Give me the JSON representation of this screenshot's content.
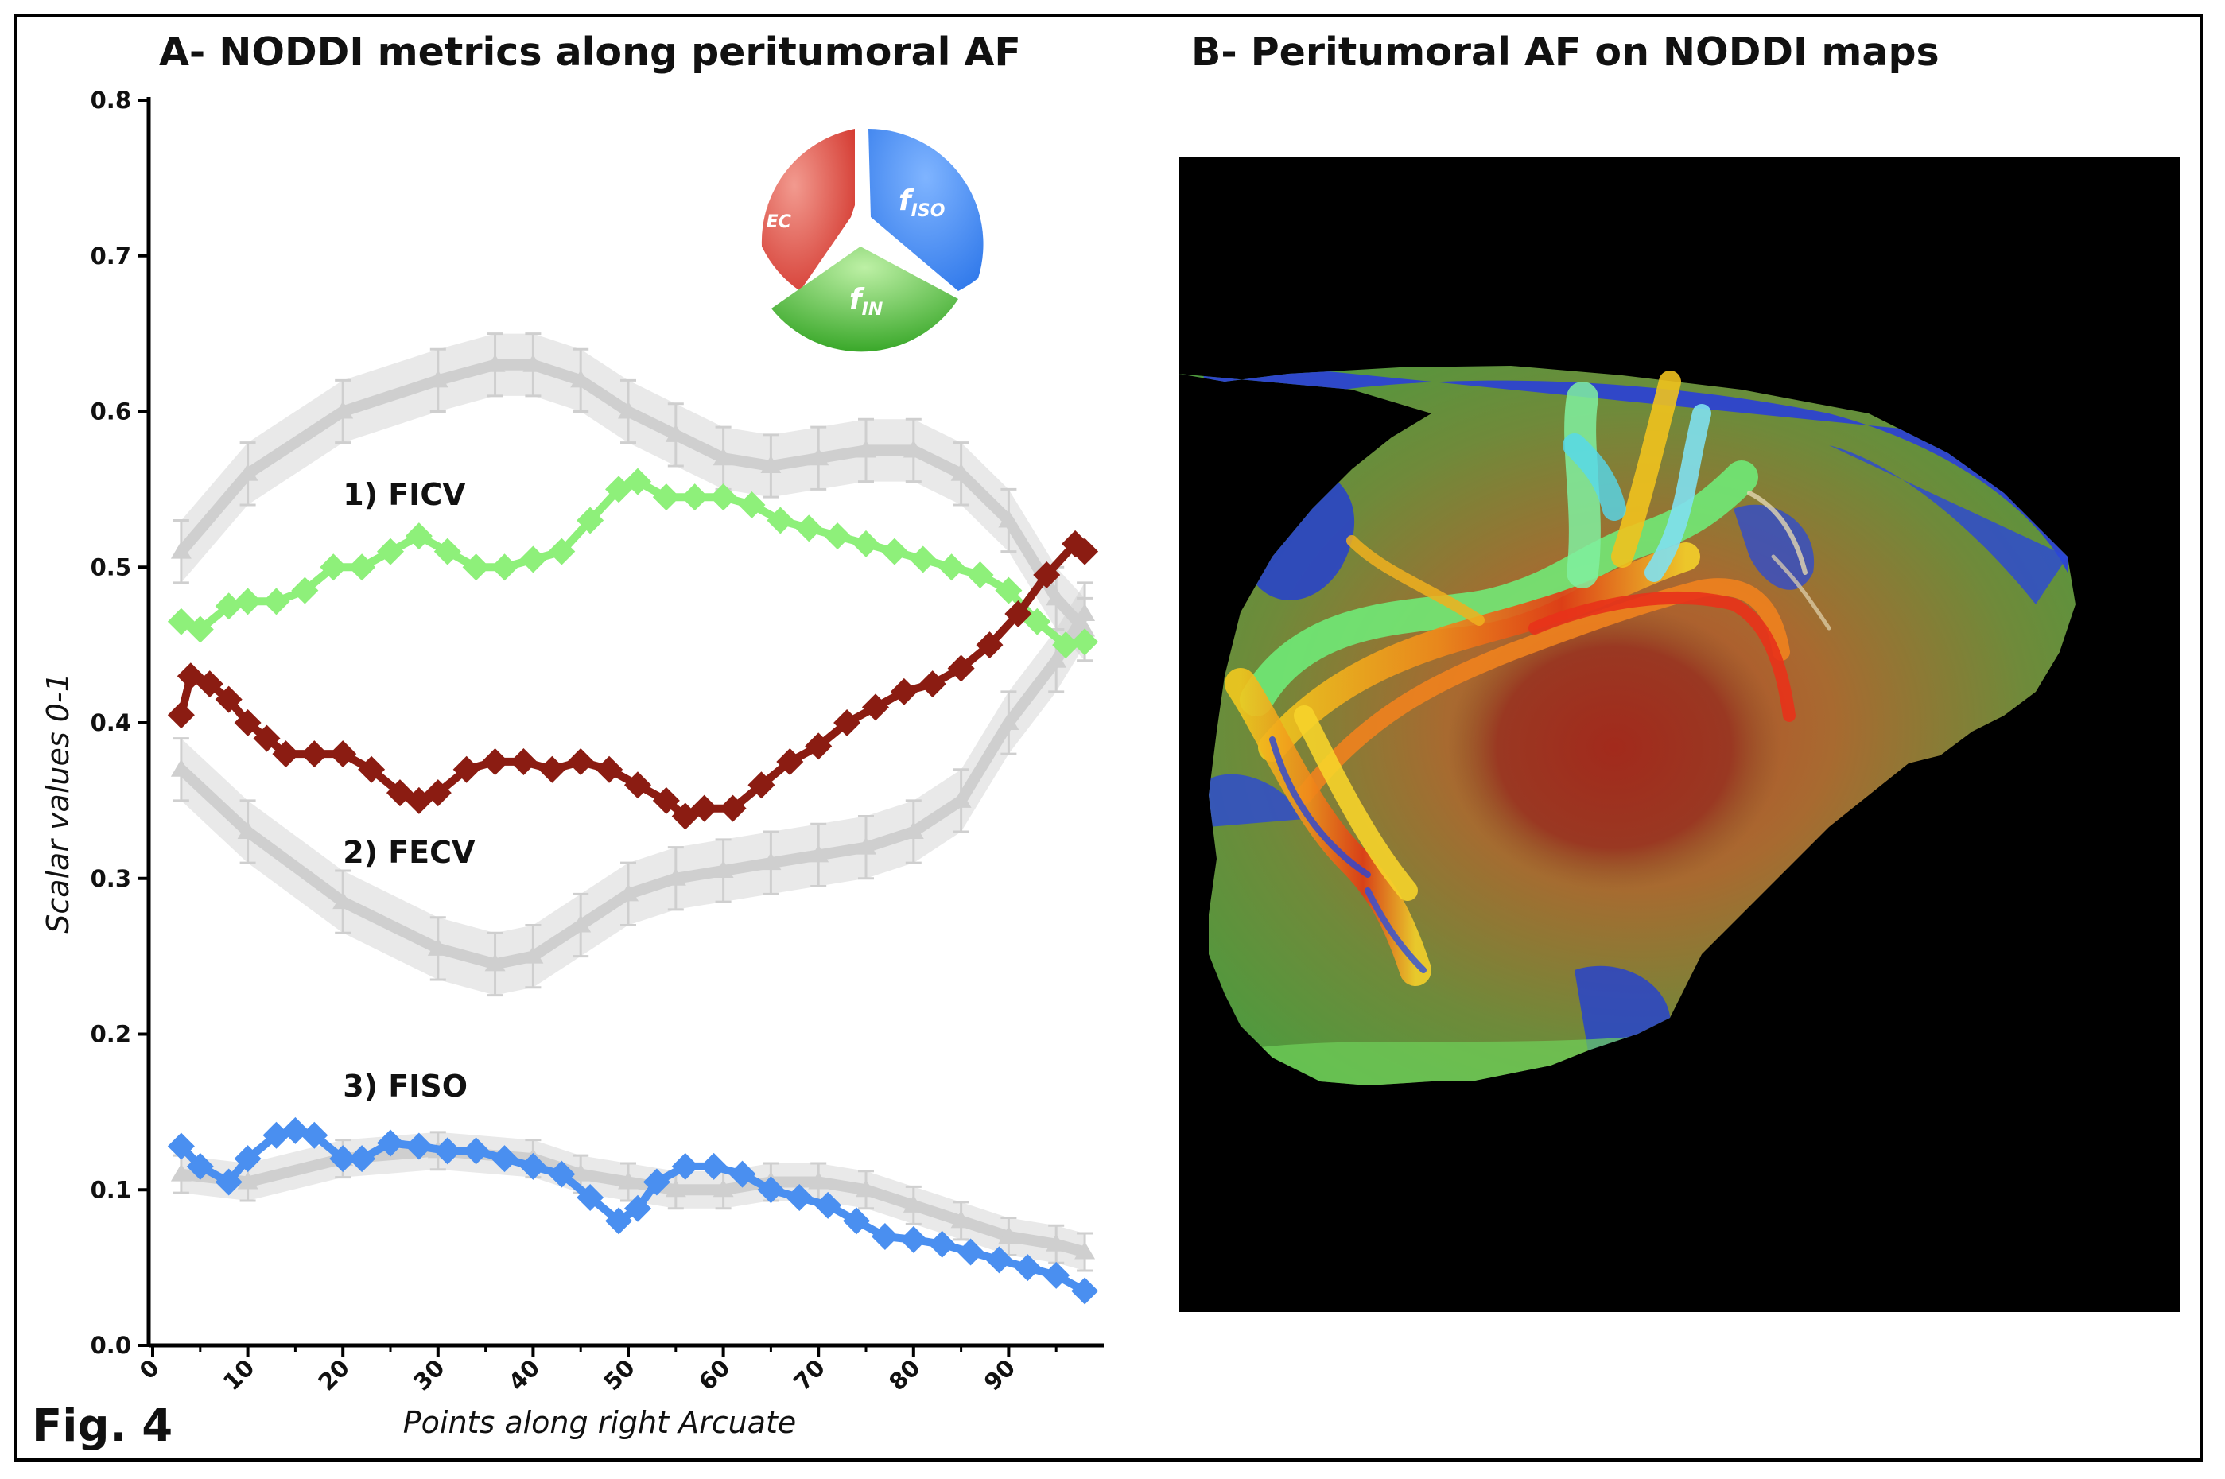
{
  "figure": {
    "label": "Fig. 4",
    "panel_a_title": "A- NODDI metrics along peritumoral AF",
    "panel_b_title": "B- Peritumoral AF on NODDI maps"
  },
  "legend_pie": {
    "segments": [
      {
        "main": "f",
        "sub": "EC",
        "color": "#e0443c"
      },
      {
        "main": "f",
        "sub": "ISO",
        "color": "#3f86ee"
      },
      {
        "main": "f",
        "sub": "IN",
        "color": "#4fc03d"
      }
    ]
  },
  "chart_data": {
    "type": "line",
    "title": "A- NODDI metrics along peritumoral AF",
    "xlabel": "Points along right Arcuate",
    "ylabel": "Scalar values 0-1",
    "xlim": [
      0,
      100
    ],
    "ylim": [
      0,
      0.8
    ],
    "xticks": [
      0,
      10,
      20,
      30,
      40,
      50,
      60,
      70,
      80,
      90
    ],
    "yticks": [
      0.0,
      0.1,
      0.2,
      0.3,
      0.4,
      0.5,
      0.6,
      0.7,
      0.8
    ],
    "xtick_labels": [
      "0",
      "10",
      "20",
      "30",
      "40",
      "50",
      "60",
      "70",
      "80",
      "90"
    ],
    "ytick_labels": [
      "0.0",
      "0.1",
      "0.2",
      "0.3",
      "0.4",
      "0.5",
      "0.6",
      "0.7",
      "0.8"
    ],
    "series_labels": [
      {
        "text": "1) FICV",
        "x": 20,
        "y": 0.54
      },
      {
        "text": "2) FECV",
        "x": 20,
        "y": 0.31
      },
      {
        "text": "3) FISO",
        "x": 20,
        "y": 0.16
      }
    ],
    "series": [
      {
        "name": "FICV reference (mean ± error)",
        "color": "#cfcfcf",
        "role": "reference",
        "x": [
          3,
          10,
          20,
          30,
          36,
          40,
          45,
          50,
          55,
          60,
          65,
          70,
          75,
          80,
          85,
          90,
          95,
          98
        ],
        "y": [
          0.51,
          0.56,
          0.6,
          0.62,
          0.63,
          0.63,
          0.62,
          0.6,
          0.585,
          0.57,
          0.565,
          0.57,
          0.575,
          0.575,
          0.56,
          0.53,
          0.48,
          0.46
        ],
        "err": 0.02
      },
      {
        "name": "FECV reference (mean ± error)",
        "color": "#cfcfcf",
        "role": "reference",
        "x": [
          3,
          10,
          20,
          30,
          36,
          40,
          45,
          50,
          55,
          60,
          65,
          70,
          75,
          80,
          85,
          90,
          95,
          98
        ],
        "y": [
          0.37,
          0.33,
          0.285,
          0.255,
          0.245,
          0.25,
          0.27,
          0.29,
          0.3,
          0.305,
          0.31,
          0.315,
          0.32,
          0.33,
          0.35,
          0.4,
          0.44,
          0.47
        ],
        "err": 0.02
      },
      {
        "name": "FISO reference (mean ± error)",
        "color": "#cfcfcf",
        "role": "reference",
        "x": [
          3,
          10,
          20,
          30,
          40,
          45,
          50,
          55,
          60,
          65,
          70,
          75,
          80,
          85,
          90,
          95,
          98
        ],
        "y": [
          0.11,
          0.105,
          0.12,
          0.125,
          0.12,
          0.11,
          0.105,
          0.1,
          0.1,
          0.105,
          0.105,
          0.1,
          0.09,
          0.08,
          0.07,
          0.065,
          0.06
        ],
        "err": 0.012
      },
      {
        "name": "1) FICV",
        "color": "#8ef07a",
        "role": "patient",
        "x": [
          3,
          5,
          8,
          10,
          13,
          16,
          19,
          22,
          25,
          28,
          31,
          34,
          37,
          40,
          43,
          46,
          49,
          51,
          54,
          57,
          60,
          63,
          66,
          69,
          72,
          75,
          78,
          81,
          84,
          87,
          90,
          93,
          96,
          98
        ],
        "y": [
          0.465,
          0.46,
          0.475,
          0.478,
          0.478,
          0.485,
          0.5,
          0.5,
          0.51,
          0.52,
          0.51,
          0.5,
          0.5,
          0.505,
          0.51,
          0.53,
          0.55,
          0.555,
          0.545,
          0.545,
          0.545,
          0.54,
          0.53,
          0.525,
          0.52,
          0.515,
          0.51,
          0.505,
          0.5,
          0.495,
          0.485,
          0.465,
          0.45,
          0.452
        ]
      },
      {
        "name": "2) FECV",
        "color": "#8b1c12",
        "role": "patient",
        "x": [
          3,
          4,
          6,
          8,
          10,
          12,
          14,
          17,
          20,
          23,
          26,
          28,
          30,
          33,
          36,
          39,
          42,
          45,
          48,
          51,
          54,
          56,
          58,
          61,
          64,
          67,
          70,
          73,
          76,
          79,
          82,
          85,
          88,
          91,
          94,
          97,
          98
        ],
        "y": [
          0.405,
          0.43,
          0.425,
          0.415,
          0.4,
          0.39,
          0.38,
          0.38,
          0.38,
          0.37,
          0.355,
          0.35,
          0.355,
          0.37,
          0.375,
          0.375,
          0.37,
          0.375,
          0.37,
          0.36,
          0.35,
          0.34,
          0.345,
          0.345,
          0.36,
          0.375,
          0.385,
          0.4,
          0.41,
          0.42,
          0.425,
          0.435,
          0.45,
          0.47,
          0.495,
          0.515,
          0.51
        ]
      },
      {
        "name": "3) FISO",
        "color": "#4a8ff0",
        "role": "patient",
        "x": [
          3,
          5,
          8,
          10,
          13,
          15,
          17,
          20,
          22,
          25,
          28,
          31,
          34,
          37,
          40,
          43,
          46,
          49,
          51,
          53,
          56,
          59,
          62,
          65,
          68,
          71,
          74,
          77,
          80,
          83,
          86,
          89,
          92,
          95,
          98
        ],
        "y": [
          0.128,
          0.115,
          0.105,
          0.12,
          0.135,
          0.138,
          0.135,
          0.12,
          0.12,
          0.13,
          0.128,
          0.125,
          0.125,
          0.12,
          0.115,
          0.11,
          0.095,
          0.08,
          0.088,
          0.105,
          0.115,
          0.115,
          0.11,
          0.1,
          0.095,
          0.09,
          0.08,
          0.07,
          0.068,
          0.065,
          0.06,
          0.055,
          0.05,
          0.045,
          0.035
        ]
      }
    ]
  }
}
